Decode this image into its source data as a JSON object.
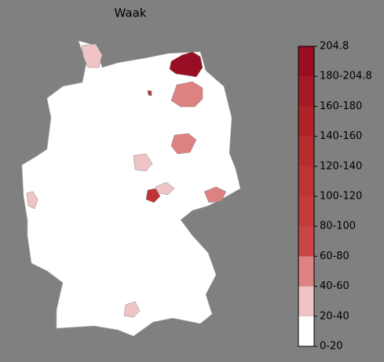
{
  "chart_data": {
    "type": "choropleth",
    "title": "Waak",
    "colorbar": {
      "ticks": [
        {
          "value": 0,
          "label": "0-20"
        },
        {
          "value": 20,
          "label": "20-40"
        },
        {
          "value": 40,
          "label": "40-60"
        },
        {
          "value": 60,
          "label": "60-80"
        },
        {
          "value": 80,
          "label": "80-100"
        },
        {
          "value": 100,
          "label": "100-120"
        },
        {
          "value": 120,
          "label": "120-140"
        },
        {
          "value": 140,
          "label": "140-160"
        },
        {
          "value": 160,
          "label": "160-180"
        },
        {
          "value": 180,
          "label": "180-204.8"
        },
        204.8
      ],
      "colors": [
        "#ffffff",
        "#f0c4c4",
        "#dc8282",
        "#c94545",
        "#c43b3b",
        "#be3434",
        "#b72c2c",
        "#ae2228",
        "#a41925",
        "#980e22"
      ]
    },
    "values": [
      190,
      110,
      50,
      50,
      50,
      30,
      110,
      30,
      30,
      30,
      30
    ]
  }
}
